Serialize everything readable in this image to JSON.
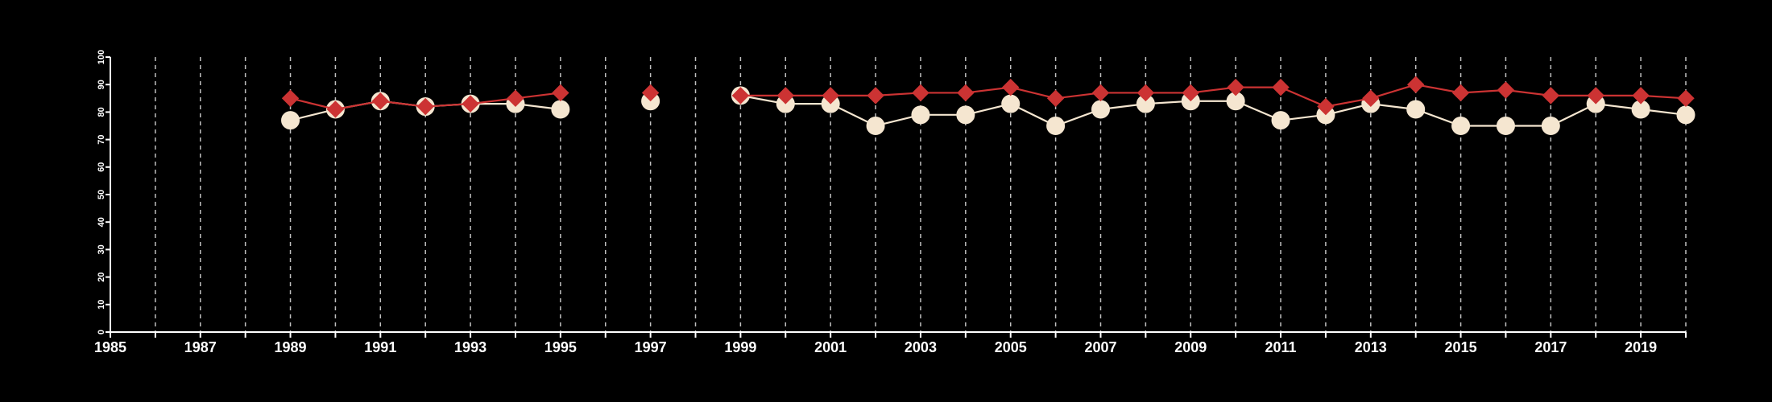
{
  "chart_data": {
    "type": "line",
    "title": "",
    "xlabel": "",
    "ylabel": "",
    "xlim": [
      1985,
      2020
    ],
    "ylim": [
      0,
      100
    ],
    "x_ticks": [
      1985,
      1987,
      1989,
      1991,
      1993,
      1995,
      1997,
      1999,
      2001,
      2003,
      2005,
      2007,
      2009,
      2011,
      2013,
      2015,
      2017,
      2019
    ],
    "y_ticks": [
      0,
      10,
      20,
      30,
      40,
      50,
      60,
      70,
      80,
      90,
      100
    ],
    "vertical_gridlines": "dashed, every year 1986-2020",
    "horizontal_gridlines": false,
    "series": [
      {
        "color": "#cc3333",
        "marker": "diamond",
        "x": [
          1989,
          1990,
          1991,
          1992,
          1993,
          1994,
          1995,
          1997,
          1999,
          2000,
          2001,
          2002,
          2003,
          2004,
          2005,
          2006,
          2007,
          2008,
          2009,
          2010,
          2011,
          2012,
          2013,
          2014,
          2015,
          2016,
          2017,
          2018,
          2019,
          2020
        ],
        "values": [
          85,
          81,
          84,
          82,
          83,
          85,
          87,
          87,
          86,
          86,
          86,
          86,
          87,
          87,
          89,
          85,
          87,
          87,
          87,
          89,
          89,
          82,
          85,
          90,
          87,
          88,
          86,
          86,
          86,
          85
        ],
        "segments_break_after": [
          1995,
          1997
        ]
      },
      {
        "color": "#f5e6d0",
        "marker": "circle",
        "x": [
          1989,
          1990,
          1991,
          1992,
          1993,
          1994,
          1995,
          1997,
          1999,
          2000,
          2001,
          2002,
          2003,
          2004,
          2005,
          2006,
          2007,
          2008,
          2009,
          2010,
          2011,
          2012,
          2013,
          2014,
          2015,
          2016,
          2017,
          2018,
          2019,
          2020
        ],
        "values": [
          77,
          81,
          84,
          82,
          83,
          83,
          81,
          84,
          86,
          83,
          83,
          75,
          79,
          79,
          83,
          75,
          81,
          83,
          84,
          84,
          77,
          79,
          83,
          81,
          75,
          75,
          75,
          83,
          81,
          79
        ],
        "segments_break_after": [
          1995,
          1997
        ]
      }
    ]
  }
}
